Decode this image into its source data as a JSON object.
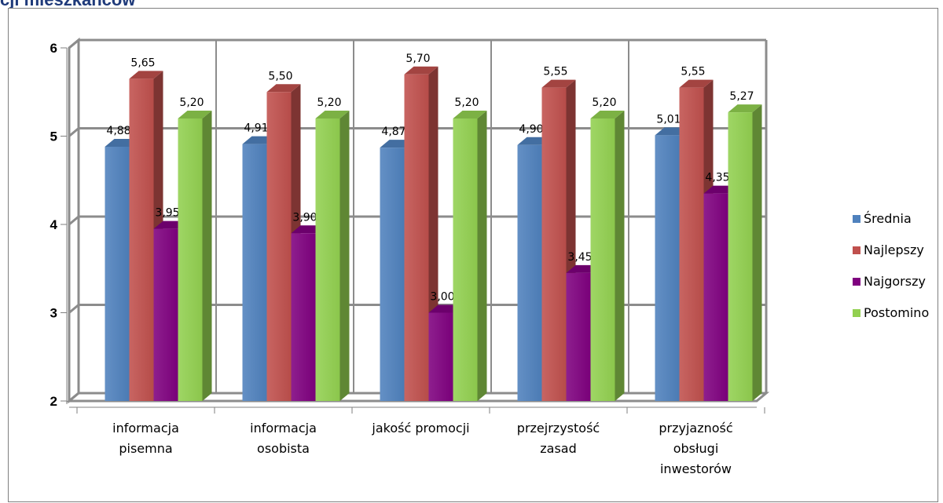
{
  "title": "cji mieszkańców",
  "chart_data": {
    "type": "bar",
    "categories": [
      [
        "informacja",
        "pisemna"
      ],
      [
        "informacja",
        "osobista"
      ],
      [
        "jakość promocji"
      ],
      [
        "przejrzystość",
        "zasad"
      ],
      [
        "przyjazność",
        "obsługi",
        "inwestorów"
      ]
    ],
    "series": [
      {
        "name": "Średnia",
        "color": "#4f81bd",
        "values": [
          4.88,
          4.91,
          4.87,
          4.9,
          5.01
        ],
        "labels": [
          "4,88",
          "4,91",
          "4,87",
          "4,90",
          "5,01"
        ]
      },
      {
        "name": "Najlepszy",
        "color": "#c0504d",
        "values": [
          5.65,
          5.5,
          5.7,
          5.55,
          5.55
        ],
        "labels": [
          "5,65",
          "5,50",
          "5,70",
          "5,55",
          "5,55"
        ]
      },
      {
        "name": "Najgorszy",
        "color": "#7f007f",
        "values": [
          3.95,
          3.9,
          3.0,
          3.45,
          4.35
        ],
        "labels": [
          "3,95",
          "3,90",
          "3,00",
          "3,45",
          "4,35"
        ]
      },
      {
        "name": "Postomino",
        "color": "#92d050",
        "values": [
          5.2,
          5.2,
          5.2,
          5.2,
          5.27
        ],
        "labels": [
          "5,20",
          "5,20",
          "5,20",
          "5,20",
          "5,27"
        ]
      }
    ],
    "ylim": [
      2,
      6
    ],
    "yticks": [
      "2",
      "3",
      "4",
      "5",
      "6"
    ],
    "grid": true,
    "legend": "right",
    "style": "3d-clustered-column"
  }
}
